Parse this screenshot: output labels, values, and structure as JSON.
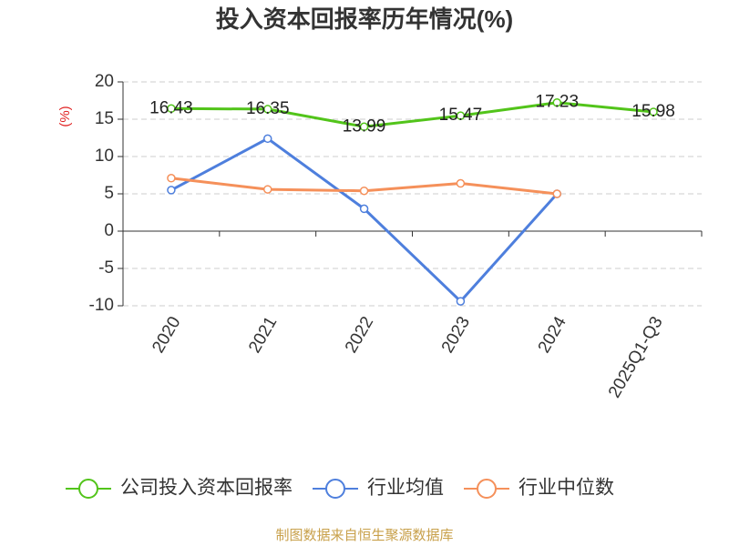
{
  "chart_data": {
    "type": "line",
    "title": "投入资本回报率历年情况(%)",
    "y_label": "(%)",
    "categories": [
      "2020",
      "2021",
      "2022",
      "2023",
      "2024",
      "2025Q1-Q3"
    ],
    "series": [
      {
        "name": "公司投入资本回报率",
        "color": "#52c41a",
        "values": [
          16.43,
          16.35,
          13.99,
          15.47,
          17.23,
          15.98
        ],
        "data_labels": true
      },
      {
        "name": "行业均值",
        "color": "#4e7fdd",
        "values": [
          5.5,
          12.4,
          3.0,
          -9.4,
          5.0,
          null
        ]
      },
      {
        "name": "行业中位数",
        "color": "#f5905a",
        "values": [
          7.1,
          5.6,
          5.4,
          6.4,
          5.0,
          null
        ]
      }
    ],
    "ylim": [
      -10,
      20
    ],
    "yticks": [
      -10,
      -5,
      0,
      5,
      10,
      15,
      20
    ],
    "grid": true,
    "legend": "bottom",
    "source": "制图数据来自恒生聚源数据库"
  }
}
